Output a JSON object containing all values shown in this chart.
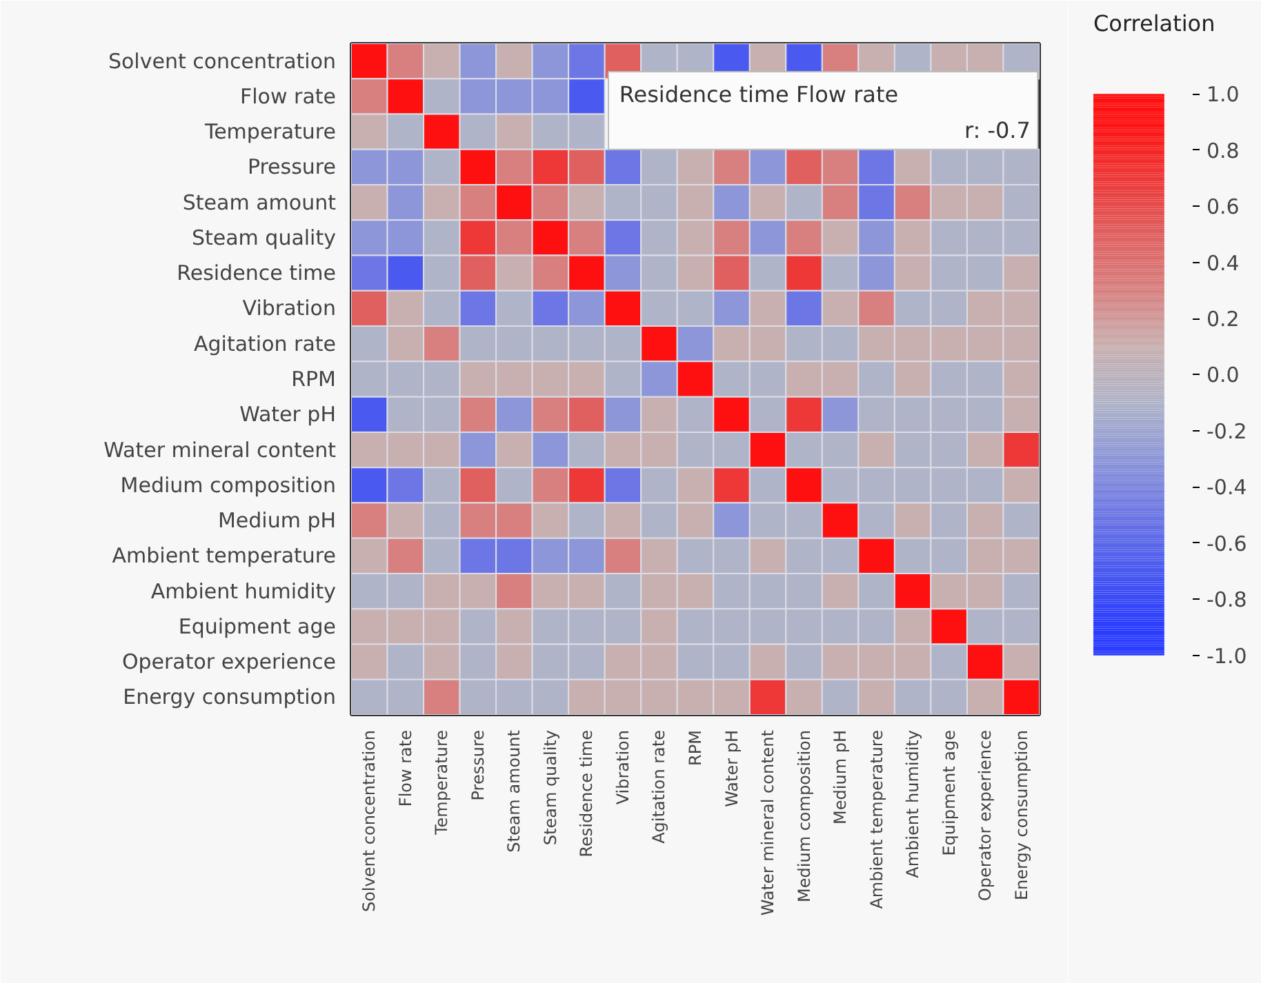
{
  "chart_data": {
    "type": "heatmap",
    "clabel": "Correlation",
    "categories": [
      "Solvent concentration",
      "Flow rate",
      "Temperature",
      "Pressure",
      "Steam amount",
      "Steam quality",
      "Residence time",
      "Vibration",
      "Agitation rate",
      "RPM",
      "Water pH",
      "Water mineral content",
      "Medium composition",
      "Medium pH",
      "Ambient temperature",
      "Ambient humidity",
      "Equipment age",
      "Operator experience",
      "Energy consumption"
    ],
    "y_categories": [
      "Solvent concentration",
      "Flow rate",
      "Temperature",
      "Pressure",
      "Steam amount",
      "Steam quality",
      "Residence time",
      "Vibration",
      "Agitation rate",
      "RPM",
      "Water pH",
      "Water mineral content",
      "Medium composition",
      "Medium pH",
      "Ambient temperature",
      "Ambient humidity",
      "Equipment age",
      "Operator experience",
      "Energy consumption"
    ],
    "cells": [
      [
        1,
        0.3,
        0.1,
        -0.3,
        0.1,
        -0.3,
        -0.5,
        0.5,
        -0.1,
        -0.1,
        -0.7,
        0.1,
        -0.7,
        0.3,
        0.1,
        -0.1,
        0.1,
        0.1,
        -0.1
      ],
      [
        0.3,
        1,
        -0.1,
        -0.3,
        -0.3,
        -0.3,
        -0.7,
        null,
        null,
        null,
        null,
        null,
        null,
        null,
        null,
        null,
        null,
        null,
        null
      ],
      [
        0.1,
        -0.1,
        1,
        -0.1,
        0.1,
        -0.1,
        -0.1,
        null,
        null,
        null,
        null,
        null,
        null,
        null,
        null,
        null,
        null,
        null,
        null
      ],
      [
        -0.3,
        -0.3,
        -0.1,
        1,
        0.3,
        0.7,
        0.5,
        -0.5,
        -0.1,
        0.1,
        0.3,
        -0.3,
        0.5,
        0.3,
        -0.5,
        0.1,
        -0.1,
        -0.1,
        -0.1
      ],
      [
        0.1,
        -0.3,
        0.1,
        0.3,
        1,
        0.3,
        0.1,
        -0.1,
        -0.1,
        0.1,
        -0.3,
        0.1,
        -0.1,
        0.3,
        -0.5,
        0.3,
        0.1,
        0.1,
        -0.1
      ],
      [
        -0.3,
        -0.3,
        -0.1,
        0.7,
        0.3,
        1,
        0.3,
        -0.5,
        -0.1,
        0.1,
        0.3,
        -0.3,
        0.3,
        0.1,
        -0.3,
        0.1,
        -0.1,
        -0.1,
        -0.1
      ],
      [
        -0.5,
        -0.7,
        -0.1,
        0.5,
        0.1,
        0.3,
        1,
        -0.3,
        -0.1,
        0.1,
        0.5,
        -0.1,
        0.7,
        -0.1,
        -0.3,
        0.1,
        -0.1,
        -0.1,
        0.1
      ],
      [
        0.5,
        0.1,
        -0.1,
        -0.5,
        -0.1,
        -0.5,
        -0.3,
        1,
        -0.1,
        -0.1,
        -0.3,
        0.1,
        -0.5,
        0.1,
        0.3,
        -0.1,
        -0.1,
        0.1,
        0.1
      ],
      [
        -0.1,
        0.1,
        0.3,
        -0.1,
        -0.1,
        -0.1,
        -0.1,
        -0.1,
        1,
        -0.3,
        0.1,
        0.1,
        -0.1,
        -0.1,
        0.1,
        0.1,
        0.1,
        0.1,
        0.1
      ],
      [
        -0.1,
        -0.1,
        -0.1,
        0.1,
        0.1,
        0.1,
        0.1,
        -0.1,
        -0.3,
        1,
        -0.1,
        -0.1,
        0.1,
        0.1,
        -0.1,
        0.1,
        -0.1,
        -0.1,
        0.1
      ],
      [
        -0.7,
        -0.1,
        -0.1,
        0.3,
        -0.3,
        0.3,
        0.5,
        -0.3,
        0.1,
        -0.1,
        1,
        -0.1,
        0.7,
        -0.3,
        -0.1,
        -0.1,
        -0.1,
        -0.1,
        0.1
      ],
      [
        0.1,
        0.1,
        0.1,
        -0.3,
        0.1,
        -0.3,
        -0.1,
        0.1,
        0.1,
        -0.1,
        -0.1,
        1,
        -0.1,
        -0.1,
        0.1,
        -0.1,
        -0.1,
        0.1,
        0.7
      ],
      [
        -0.7,
        -0.5,
        -0.1,
        0.5,
        -0.1,
        0.3,
        0.7,
        -0.5,
        -0.1,
        0.1,
        0.7,
        -0.1,
        1,
        -0.1,
        -0.1,
        -0.1,
        -0.1,
        -0.1,
        0.1
      ],
      [
        0.3,
        0.1,
        -0.1,
        0.3,
        0.3,
        0.1,
        -0.1,
        0.1,
        -0.1,
        0.1,
        -0.3,
        -0.1,
        -0.1,
        1,
        -0.1,
        0.1,
        -0.1,
        0.1,
        -0.1
      ],
      [
        0.1,
        0.3,
        -0.1,
        -0.5,
        -0.5,
        -0.3,
        -0.3,
        0.3,
        0.1,
        -0.1,
        -0.1,
        0.1,
        -0.1,
        -0.1,
        1,
        -0.1,
        -0.1,
        0.1,
        0.1
      ],
      [
        -0.1,
        -0.1,
        0.1,
        0.1,
        0.3,
        0.1,
        0.1,
        -0.1,
        0.1,
        0.1,
        -0.1,
        -0.1,
        -0.1,
        0.1,
        -0.1,
        1,
        0.1,
        0.1,
        -0.1
      ],
      [
        0.1,
        0.1,
        0.1,
        -0.1,
        0.1,
        -0.1,
        -0.1,
        -0.1,
        0.1,
        -0.1,
        -0.1,
        -0.1,
        -0.1,
        -0.1,
        -0.1,
        0.1,
        1,
        -0.1,
        -0.1
      ],
      [
        0.1,
        -0.1,
        0.1,
        -0.1,
        0.1,
        -0.1,
        -0.1,
        0.1,
        0.1,
        -0.1,
        -0.1,
        0.1,
        -0.1,
        0.1,
        0.1,
        0.1,
        -0.1,
        1,
        0.1
      ],
      [
        -0.1,
        -0.1,
        0.3,
        -0.1,
        -0.1,
        -0.1,
        0.1,
        0.1,
        0.1,
        0.1,
        0.1,
        0.7,
        0.1,
        -0.1,
        0.1,
        -0.1,
        -0.1,
        0.1,
        1
      ]
    ],
    "clim": [
      -1,
      1
    ],
    "cticks": [
      {
        "value": 1,
        "label": "1.0"
      },
      0.8,
      0.6,
      0.4,
      0.2,
      {
        "value": 0,
        "label": "0.0"
      },
      -0.2,
      -0.4,
      -0.6,
      -0.8,
      {
        "value": -1,
        "label": "-1.0"
      }
    ],
    "annotations": [
      "Residence time Flow rate",
      "r: -0.7"
    ]
  }
}
